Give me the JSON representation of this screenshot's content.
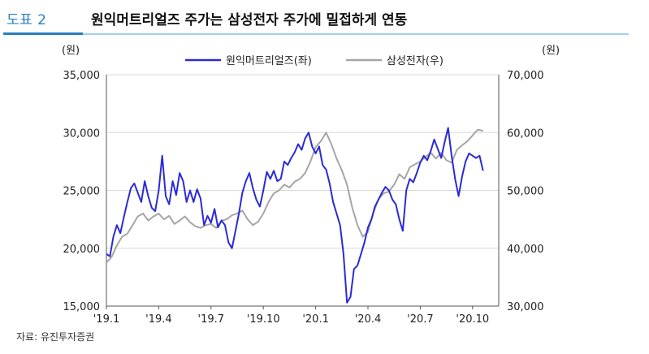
{
  "header": {
    "figure_label": "도표 2",
    "title": "원익머트리얼즈 주가는 삼성전자 주가에 밀접하게 연동"
  },
  "source": "자료: 유진투자증권",
  "colors": {
    "accent": "#2a7fbf",
    "accent_light": "#9ed0ee",
    "series_primary": "#2b2bd4",
    "series_secondary": "#a6a6a6"
  },
  "chart_data": {
    "type": "line",
    "left_unit": "(원)",
    "right_unit": "(원)",
    "x_ticks": [
      "'19.1",
      "'19.4",
      "'19.7",
      "'19.10",
      "'20.1",
      "'20.4",
      "'20.7",
      "'20.10"
    ],
    "y_left": {
      "lim": [
        15000,
        35000
      ],
      "ticks": [
        "15,000",
        "20,000",
        "25,000",
        "30,000",
        "35,000"
      ]
    },
    "y_right": {
      "lim": [
        30000,
        70000
      ],
      "ticks": [
        "30,000",
        "40,000",
        "50,000",
        "60,000",
        "70,000"
      ]
    },
    "grid": true,
    "legend_position": "top-center",
    "x_range": [
      0,
      22.5
    ],
    "series": [
      {
        "name": "원익머트리얼즈(좌)",
        "axis": "left",
        "color": "#2b2bd4",
        "x": [
          0,
          0.2,
          0.4,
          0.6,
          0.8,
          1.0,
          1.2,
          1.4,
          1.6,
          1.8,
          2.0,
          2.2,
          2.4,
          2.6,
          2.8,
          3.0,
          3.2,
          3.4,
          3.6,
          3.8,
          4.0,
          4.2,
          4.4,
          4.6,
          4.8,
          5.0,
          5.2,
          5.4,
          5.6,
          5.8,
          6.0,
          6.2,
          6.4,
          6.6,
          6.8,
          7.0,
          7.2,
          7.4,
          7.6,
          7.8,
          8.0,
          8.2,
          8.4,
          8.6,
          8.8,
          9.0,
          9.2,
          9.4,
          9.6,
          9.8,
          10.0,
          10.2,
          10.4,
          10.6,
          10.8,
          11.0,
          11.2,
          11.4,
          11.6,
          11.8,
          12.0,
          12.2,
          12.4,
          12.6,
          12.8,
          13.0,
          13.2,
          13.4,
          13.6,
          13.8,
          14.0,
          14.2,
          14.4,
          14.6,
          14.8,
          15.0,
          15.2,
          15.4,
          15.6,
          15.8,
          16.0,
          16.2,
          16.4,
          16.6,
          16.8,
          17.0,
          17.2,
          17.4,
          17.6,
          17.8,
          18.0,
          18.2,
          18.4,
          18.6,
          18.8,
          19.0,
          19.2,
          19.4,
          19.6,
          19.8,
          20.0,
          20.2,
          20.4,
          20.6,
          20.8,
          21.0,
          21.2,
          21.4,
          21.6
        ],
        "y": [
          19500,
          19300,
          21000,
          22000,
          21300,
          22700,
          24000,
          25200,
          25600,
          24800,
          24000,
          25800,
          24500,
          23500,
          23200,
          25000,
          28000,
          24500,
          23800,
          25800,
          24600,
          26500,
          25800,
          24000,
          25000,
          24000,
          25100,
          24300,
          22000,
          22800,
          22200,
          23400,
          21800,
          22400,
          22000,
          20500,
          20000,
          21500,
          23000,
          24800,
          25800,
          26500,
          25200,
          24200,
          23600,
          25000,
          26600,
          26000,
          26700,
          25800,
          26000,
          27500,
          27200,
          27800,
          28300,
          29000,
          28500,
          29500,
          30000,
          28800,
          28200,
          28800,
          27200,
          26800,
          25600,
          24000,
          23000,
          22000,
          19500,
          15300,
          15800,
          18200,
          18500,
          19500,
          20500,
          21800,
          22500,
          23600,
          24200,
          24800,
          25300,
          25000,
          24200,
          23800,
          22500,
          21500,
          25000,
          26000,
          25700,
          26500,
          27400,
          28000,
          27600,
          28400,
          29400,
          28600,
          27800,
          29200,
          30400,
          28000,
          26000,
          24500,
          26200,
          27500,
          28200,
          28000,
          27800,
          28000,
          26700
        ]
      },
      {
        "name": "삼성전자(우)",
        "axis": "right",
        "color": "#a6a6a6",
        "x": [
          0,
          0.3,
          0.6,
          0.9,
          1.2,
          1.5,
          1.8,
          2.1,
          2.4,
          2.7,
          3.0,
          3.3,
          3.6,
          3.9,
          4.2,
          4.5,
          4.8,
          5.1,
          5.4,
          5.7,
          6.0,
          6.3,
          6.6,
          6.9,
          7.2,
          7.5,
          7.8,
          8.1,
          8.4,
          8.7,
          9.0,
          9.3,
          9.6,
          9.9,
          10.2,
          10.5,
          10.8,
          11.1,
          11.4,
          11.7,
          12.0,
          12.3,
          12.6,
          12.9,
          13.2,
          13.5,
          13.8,
          14.1,
          14.4,
          14.7,
          15.0,
          15.3,
          15.6,
          15.9,
          16.2,
          16.5,
          16.8,
          17.1,
          17.4,
          17.7,
          18.0,
          18.3,
          18.6,
          18.9,
          19.2,
          19.5,
          19.8,
          20.1,
          20.4,
          20.7,
          21.0,
          21.3,
          21.6
        ],
        "y": [
          37500,
          38500,
          40500,
          42000,
          42500,
          44000,
          45500,
          46000,
          44800,
          45500,
          46000,
          45000,
          45600,
          44200,
          44800,
          45500,
          44500,
          43800,
          43500,
          44000,
          44200,
          43500,
          44800,
          45000,
          45700,
          46000,
          46500,
          45000,
          44000,
          44600,
          46000,
          48000,
          49500,
          50000,
          51000,
          50500,
          51500,
          52000,
          53000,
          55000,
          57500,
          58500,
          60000,
          58000,
          55500,
          53500,
          51000,
          47000,
          44000,
          42000,
          42800,
          46000,
          48500,
          49500,
          49800,
          51000,
          52800,
          52000,
          54000,
          54500,
          55000,
          55800,
          56500,
          55500,
          56500,
          55200,
          54800,
          57000,
          57800,
          58500,
          59500,
          60500,
          60300
        ]
      }
    ]
  }
}
